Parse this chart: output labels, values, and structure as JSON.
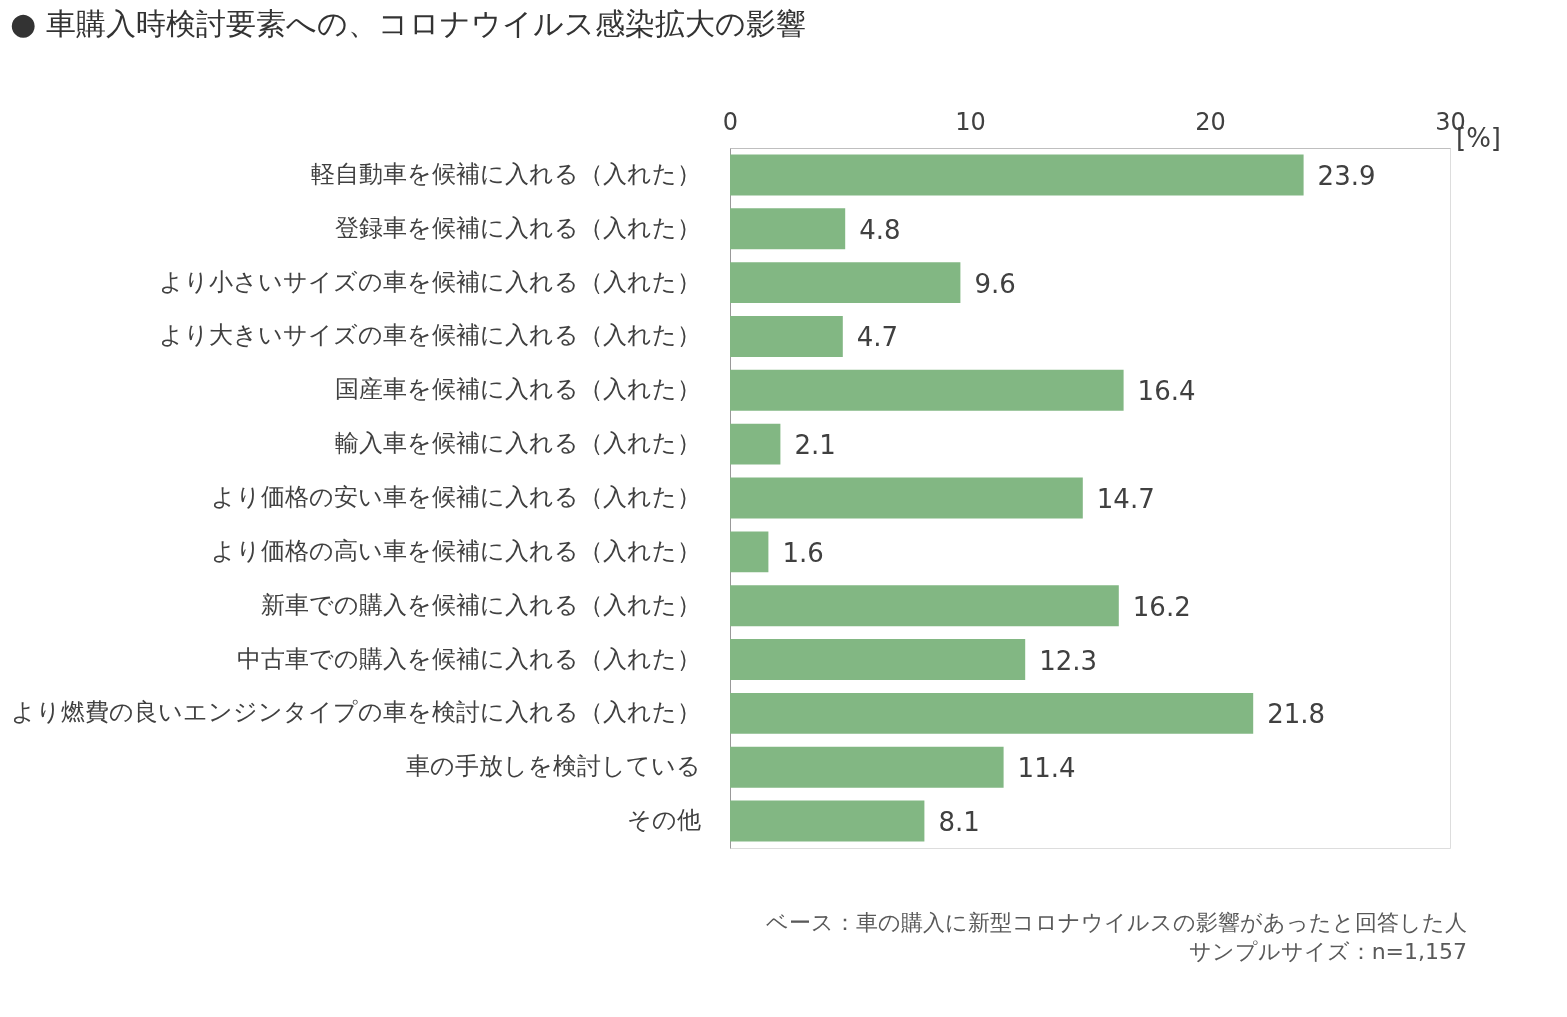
{
  "chart_data": {
    "type": "bar",
    "orientation": "horizontal",
    "title": "● 車購入時検討要素への、コロナウイルス感染拡大の影響",
    "xlabel": "[%]",
    "categories": [
      "軽自動車を候補に入れる（入れた）",
      "登録車を候補に入れる（入れた）",
      "より小さいサイズの車を候補に入れる（入れた）",
      "より大きいサイズの車を候補に入れる（入れた）",
      "国産車を候補に入れる（入れた）",
      "輸入車を候補に入れる（入れた）",
      "より価格の安い車を候補に入れる（入れた）",
      "より価格の高い車を候補に入れる（入れた）",
      "新車での購入を候補に入れる（入れた）",
      "中古車での購入を候補に入れる（入れた）",
      "より燃費の良いエンジンタイプの車を検討に入れる（入れた）",
      "車の手放しを検討している",
      "その他"
    ],
    "values": [
      23.9,
      4.8,
      9.6,
      4.7,
      16.4,
      2.1,
      14.7,
      1.6,
      16.2,
      12.3,
      21.8,
      11.4,
      8.1
    ],
    "color": "#82b783",
    "xlim": [
      0,
      30
    ],
    "xticks": [
      0,
      10,
      20,
      30
    ],
    "grid": false,
    "data_labels": true,
    "annotations": [
      "ベース：車の購入に新型コロナウイルスの影響があったと回答した人",
      "サンプルサイズ：n=1,157"
    ]
  }
}
